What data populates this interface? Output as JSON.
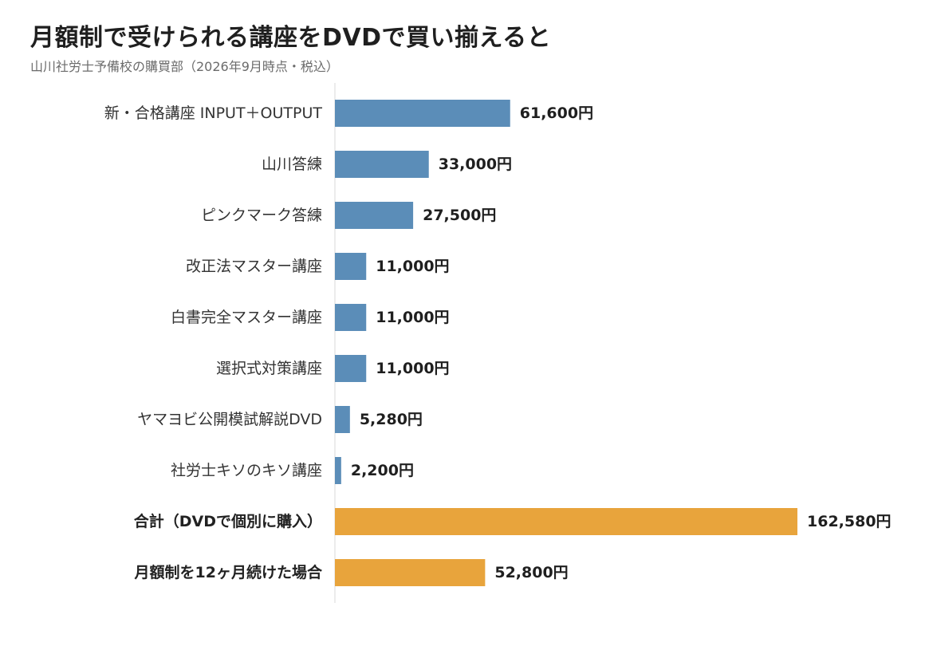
{
  "title": "月額制で受けられる講座をDVDで買い揃えると",
  "subtitle": "山川社労士予備校の購買部（2026年9月時点・税込）",
  "colors": {
    "item_bar": "#5b8db8",
    "total_bar": "#e8a43c",
    "axis_line": "#d9d9d9"
  },
  "chart_data": {
    "type": "bar",
    "orientation": "horizontal",
    "title": "月額制で受けられる講座をDVDで買い揃えると",
    "subtitle": "山川社労士予備校の購買部（2026年9月時点・税込）",
    "xlabel": "",
    "ylabel": "",
    "xlim": [
      0,
      162580
    ],
    "grid": false,
    "legend": "none",
    "bars": [
      {
        "category": "新・合格講座 INPUT＋OUTPUT",
        "value": 61600,
        "label": "61,600円",
        "group": "item"
      },
      {
        "category": "山川答練",
        "value": 33000,
        "label": "33,000円",
        "group": "item"
      },
      {
        "category": "ピンクマーク答練",
        "value": 27500,
        "label": "27,500円",
        "group": "item"
      },
      {
        "category": "改正法マスター講座",
        "value": 11000,
        "label": "11,000円",
        "group": "item"
      },
      {
        "category": "白書完全マスター講座",
        "value": 11000,
        "label": "11,000円",
        "group": "item"
      },
      {
        "category": "選択式対策講座",
        "value": 11000,
        "label": "11,000円",
        "group": "item"
      },
      {
        "category": "ヤマヨビ公開模試解説DVD",
        "value": 5280,
        "label": "5,280円",
        "group": "item"
      },
      {
        "category": "社労士キソのキソ講座",
        "value": 2200,
        "label": "2,200円",
        "group": "item"
      },
      {
        "category": "合計（DVDで個別に購入）",
        "value": 162580,
        "label": "162,580円",
        "group": "total"
      },
      {
        "category": "月額制を12ヶ月続けた場合",
        "value": 52800,
        "label": "52,800円",
        "group": "total"
      }
    ]
  }
}
